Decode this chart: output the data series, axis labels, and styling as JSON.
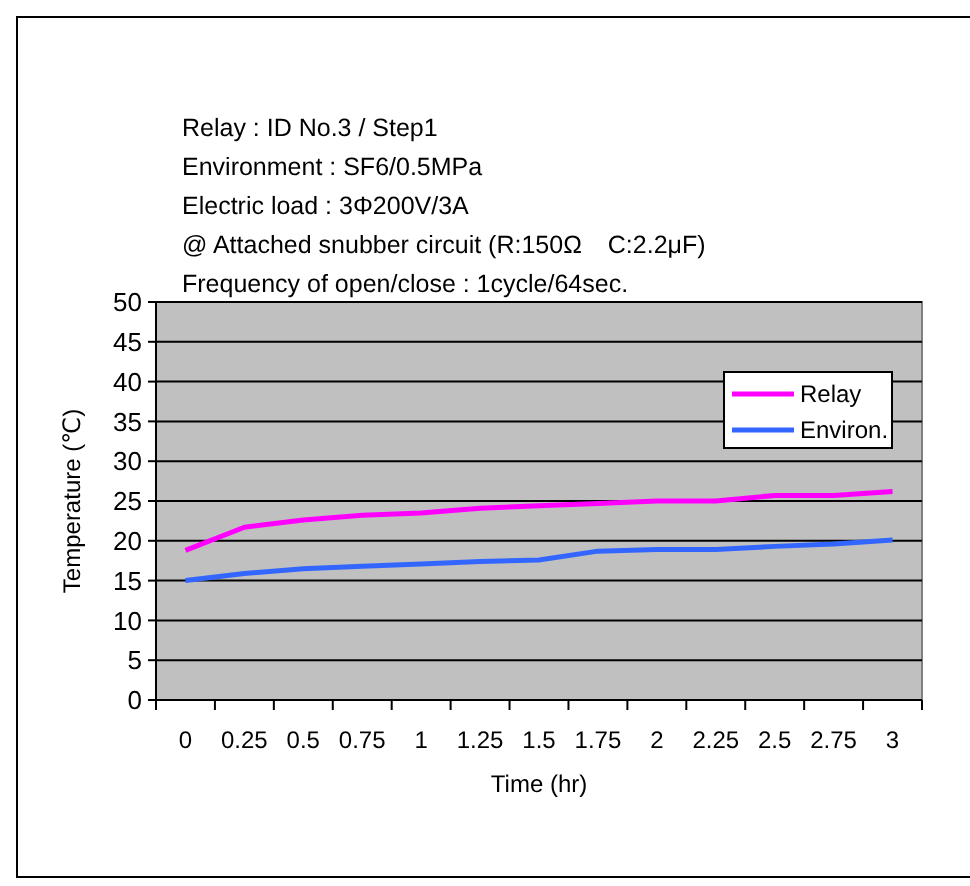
{
  "chart_data": {
    "type": "line",
    "title": "Relay : ID No.3 / Step1",
    "annotations": [
      "Environment : SF6/0.5MPa",
      "Electric load : 3Φ200V/3A",
      "@ Attached snubber circuit (R:150Ω　C:2.2μF)",
      "Frequency of open/close : 1cycle/64sec."
    ],
    "xlabel": "Time (hr)",
    "ylabel": "Temperature (℃)",
    "categories": [
      "0",
      "0.25",
      "0.5",
      "0.75",
      "1",
      "1.25",
      "1.5",
      "1.75",
      "2",
      "2.25",
      "2.5",
      "2.75",
      "3"
    ],
    "series": [
      {
        "name": "Relay",
        "color": "#ff00ff",
        "values": [
          18.8,
          21.7,
          22.6,
          23.2,
          23.5,
          24.1,
          24.4,
          24.7,
          25.0,
          25.0,
          25.7,
          25.7,
          26.2
        ]
      },
      {
        "name": "Environ.",
        "color": "#3366ff",
        "values": [
          15.0,
          15.9,
          16.5,
          16.8,
          17.1,
          17.4,
          17.6,
          18.7,
          18.9,
          18.9,
          19.3,
          19.6,
          20.1
        ]
      }
    ],
    "ylim": [
      0,
      50
    ],
    "yticks": [
      0,
      5,
      10,
      15,
      20,
      25,
      30,
      35,
      40,
      45,
      50
    ],
    "grid": "y",
    "legend": "top right",
    "marker": "none",
    "line_style": "solid"
  }
}
